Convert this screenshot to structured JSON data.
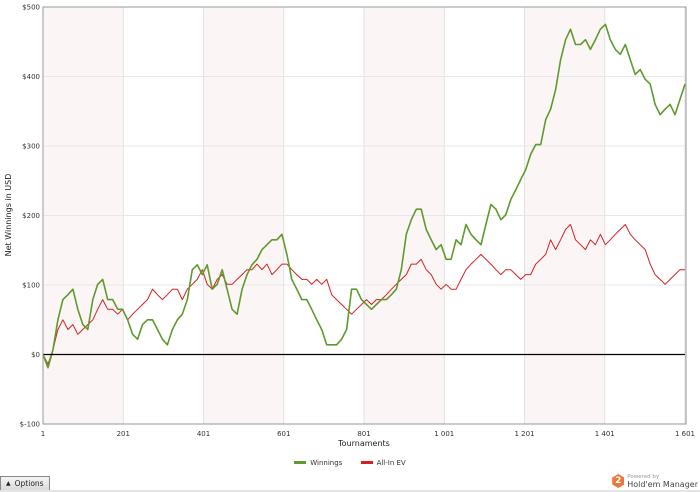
{
  "chart_data": {
    "type": "line",
    "title": "",
    "xlabel": "Tournaments",
    "ylabel": "Net Winnings in USD",
    "xlim": [
      1,
      1601
    ],
    "ylim": [
      -100,
      500
    ],
    "grid": true,
    "legend_position": "bottom",
    "x_ticks": [
      "1",
      "201",
      "401",
      "601",
      "801",
      "1 001",
      "1 201",
      "1 401",
      "1 601"
    ],
    "x_tick_values": [
      1,
      201,
      401,
      601,
      801,
      1001,
      1201,
      1401,
      1601
    ],
    "y_ticks": [
      "$500",
      "$400",
      "$300",
      "$200",
      "$100",
      "$0",
      "$-100"
    ],
    "y_tick_values": [
      500,
      400,
      300,
      200,
      100,
      0,
      -100
    ],
    "series": [
      {
        "name": "Winnings",
        "color": "#5e9a2e",
        "values": [
          0,
          -19,
          7,
          50,
          79,
          86,
          94,
          65,
          43,
          36,
          79,
          101,
          108,
          79,
          79,
          65,
          65,
          50,
          29,
          22,
          43,
          50,
          50,
          36,
          22,
          14,
          36,
          50,
          58,
          79,
          122,
          129,
          115,
          129,
          94,
          101,
          122,
          94,
          65,
          58,
          94,
          115,
          129,
          137,
          151,
          158,
          165,
          165,
          173,
          144,
          108,
          94,
          79,
          79,
          65,
          50,
          36,
          14,
          14,
          14,
          22,
          36,
          94,
          94,
          79,
          72,
          65,
          72,
          79,
          79,
          86,
          94,
          122,
          173,
          194,
          209,
          209,
          180,
          165,
          151,
          158,
          137,
          137,
          165,
          158,
          187,
          173,
          165,
          158,
          187,
          216,
          209,
          194,
          201,
          223,
          237,
          252,
          266,
          288,
          302,
          302,
          338,
          353,
          381,
          424,
          453,
          468,
          446,
          446,
          453,
          439,
          453,
          468,
          475,
          453,
          439,
          432,
          446,
          424,
          403,
          410,
          396,
          389,
          360,
          345,
          353,
          360,
          345,
          367,
          389
        ]
      },
      {
        "name": "All-In EV",
        "color": "#d42020",
        "values": [
          0,
          -14,
          7,
          36,
          50,
          36,
          43,
          29,
          36,
          43,
          50,
          65,
          79,
          65,
          65,
          58,
          65,
          50,
          58,
          65,
          72,
          79,
          94,
          86,
          79,
          86,
          94,
          94,
          79,
          94,
          101,
          108,
          122,
          101,
          94,
          108,
          115,
          101,
          101,
          108,
          115,
          122,
          122,
          130,
          122,
          130,
          115,
          122,
          130,
          130,
          122,
          115,
          108,
          108,
          101,
          108,
          101,
          108,
          86,
          79,
          72,
          65,
          58,
          65,
          72,
          79,
          72,
          79,
          79,
          86,
          94,
          101,
          108,
          115,
          130,
          130,
          137,
          122,
          115,
          101,
          94,
          101,
          94,
          94,
          108,
          122,
          130,
          137,
          144,
          137,
          130,
          122,
          115,
          122,
          122,
          115,
          108,
          115,
          115,
          130,
          137,
          144,
          165,
          151,
          165,
          180,
          187,
          165,
          158,
          151,
          165,
          158,
          173,
          158,
          165,
          173,
          180,
          187,
          173,
          165,
          158,
          151,
          130,
          115,
          108,
          101,
          108,
          115,
          122,
          122
        ]
      }
    ],
    "band_color": "#fcf5f5"
  },
  "ui": {
    "options_label": "Options",
    "options_icon": "triangle-up-icon",
    "logo_powered": "Powered by",
    "logo_brand": "Hold'em Manager",
    "logo_number": "2"
  }
}
